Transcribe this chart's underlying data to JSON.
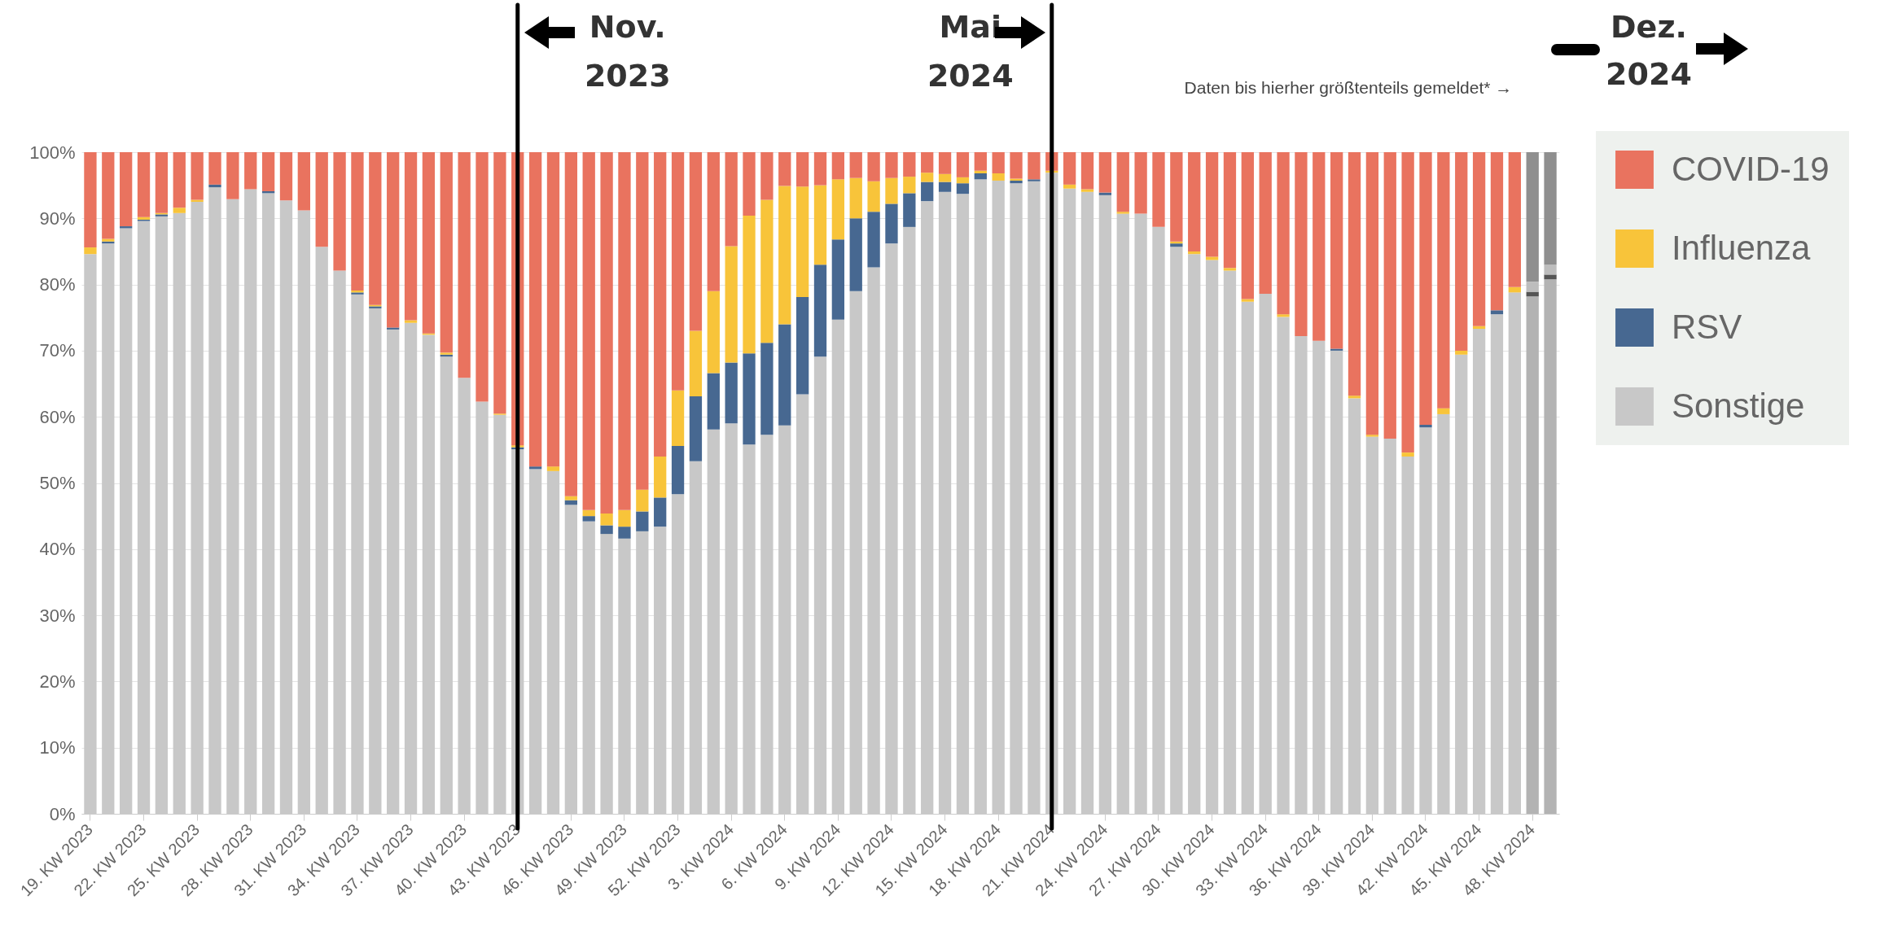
{
  "chart_data": {
    "type": "bar",
    "stacked": true,
    "categories": [
      "19. KW 2023",
      null,
      null,
      "22. KW 2023",
      null,
      null,
      "25. KW 2023",
      null,
      null,
      "28. KW 2023",
      null,
      null,
      "31. KW 2023",
      null,
      null,
      "34. KW 2023",
      null,
      null,
      "37. KW 2023",
      null,
      null,
      "40. KW 2023",
      null,
      null,
      "43. KW 2023",
      null,
      null,
      "46. KW 2023",
      null,
      null,
      "49. KW 2023",
      null,
      null,
      "52. KW 2023",
      null,
      null,
      "3. KW 2024",
      null,
      null,
      "6. KW 2024",
      null,
      null,
      "9. KW 2024",
      null,
      null,
      "12. KW 2024",
      null,
      null,
      "15. KW 2024",
      null,
      null,
      "18. KW 2024",
      null,
      null,
      "21. KW 2024",
      null,
      null,
      "24. KW 2024",
      null,
      null,
      "27. KW 2024",
      null,
      null,
      "30. KW 2024",
      null,
      null,
      "33. KW 2024",
      null,
      null,
      "36. KW 2024",
      null,
      null,
      "39. KW 2024",
      null,
      null,
      "42. KW 2024",
      null,
      null,
      "45. KW 2024",
      null,
      null,
      "48. KW 2024",
      null
    ],
    "series": [
      {
        "name": "Sonstige",
        "color": "#c8c8c8",
        "colors": [
          "#c8c8c8",
          "#c8c8c8",
          "#c8c8c8",
          "#c8c8c8",
          "#c8c8c8",
          "#c8c8c8",
          "#c8c8c8",
          "#c8c8c8",
          "#c8c8c8",
          "#c8c8c8",
          "#c8c8c8",
          "#c8c8c8",
          "#c8c8c8",
          "#c8c8c8",
          "#c8c8c8",
          "#c8c8c8",
          "#c8c8c8",
          "#c8c8c8",
          "#c8c8c8",
          "#c8c8c8",
          "#c8c8c8",
          "#c8c8c8",
          "#c8c8c8",
          "#c8c8c8",
          "#c8c8c8",
          "#c8c8c8",
          "#c8c8c8",
          "#c8c8c8",
          "#c8c8c8",
          "#c8c8c8",
          "#c8c8c8",
          "#c8c8c8",
          "#c8c8c8",
          "#c8c8c8",
          "#c8c8c8",
          "#c8c8c8",
          "#c8c8c8",
          "#c8c8c8",
          "#c8c8c8",
          "#c8c8c8",
          "#c8c8c8",
          "#c8c8c8",
          "#c8c8c8",
          "#c8c8c8",
          "#c8c8c8",
          "#c8c8c8",
          "#c8c8c8",
          "#c8c8c8",
          "#c8c8c8",
          "#c8c8c8",
          "#c8c8c8",
          "#c8c8c8",
          "#c8c8c8",
          "#c8c8c8",
          "#c8c8c8",
          "#c8c8c8",
          "#c8c8c8",
          "#c8c8c8",
          "#c8c8c8",
          "#c8c8c8",
          "#c8c8c8",
          "#c8c8c8",
          "#c8c8c8",
          "#c8c8c8",
          "#c8c8c8",
          "#c8c8c8",
          "#c8c8c8",
          "#c8c8c8",
          "#c8c8c8",
          "#c8c8c8",
          "#c8c8c8",
          "#c8c8c8",
          "#c8c8c8",
          "#c8c8c8",
          "#c8c8c8",
          "#c8c8c8",
          "#c8c8c8",
          "#c8c8c8",
          "#c8c8c8",
          "#c8c8c8",
          "#c8c8c8",
          "#b3b3b3",
          "#b3b3b3"
        ],
        "values": [
          84.6,
          86.2,
          88.5,
          89.6,
          90.3,
          90.8,
          92.5,
          94.7,
          92.9,
          94.4,
          93.8,
          92.7,
          91.2,
          85.7,
          82.1,
          78.5,
          76.4,
          73.2,
          74.2,
          72.4,
          69.1,
          65.9,
          62.3,
          60.3,
          55.1,
          52.1,
          51.8,
          46.7,
          44.2,
          42.3,
          41.6,
          42.7,
          43.4,
          48.3,
          53.3,
          58.1,
          59.0,
          55.8,
          57.3,
          58.7,
          63.4,
          69.1,
          74.7,
          79.0,
          82.6,
          86.2,
          88.7,
          92.6,
          94.0,
          93.7,
          95.9,
          95.7,
          95.3,
          95.6,
          96.9,
          94.5,
          94.0,
          93.5,
          90.7,
          90.7,
          88.7,
          85.7,
          84.6,
          83.7,
          82.1,
          77.4,
          78.6,
          75.1,
          72.2,
          71.5,
          70.0,
          62.8,
          57.0,
          56.7,
          54.0,
          58.4,
          60.4,
          69.4,
          73.3,
          75.5,
          78.8,
          78.2,
          80.8
        ]
      },
      {
        "name": "RSV",
        "color": "#476891",
        "colors": [
          "#476891",
          "#476891",
          "#476891",
          "#476891",
          "#476891",
          "#476891",
          "#476891",
          "#476891",
          "#476891",
          "#476891",
          "#476891",
          "#476891",
          "#476891",
          "#476891",
          "#476891",
          "#476891",
          "#476891",
          "#476891",
          "#476891",
          "#476891",
          "#476891",
          "#476891",
          "#476891",
          "#476891",
          "#476891",
          "#476891",
          "#476891",
          "#476891",
          "#476891",
          "#476891",
          "#476891",
          "#476891",
          "#476891",
          "#476891",
          "#476891",
          "#476891",
          "#476891",
          "#476891",
          "#476891",
          "#476891",
          "#476891",
          "#476891",
          "#476891",
          "#476891",
          "#476891",
          "#476891",
          "#476891",
          "#476891",
          "#476891",
          "#476891",
          "#476891",
          "#476891",
          "#476891",
          "#476891",
          "#476891",
          "#476891",
          "#476891",
          "#476891",
          "#476891",
          "#476891",
          "#476891",
          "#476891",
          "#476891",
          "#476891",
          "#476891",
          "#476891",
          "#476891",
          "#476891",
          "#476891",
          "#476891",
          "#476891",
          "#476891",
          "#476891",
          "#476891",
          "#476891",
          "#476891",
          "#476891",
          "#476891",
          "#476891",
          "#476891",
          "#476891",
          "#555555",
          "#555555"
        ],
        "values": [
          0,
          0.3,
          0.3,
          0.2,
          0.3,
          0,
          0,
          0.4,
          0,
          0,
          0.3,
          0,
          0,
          0,
          0,
          0.3,
          0.3,
          0.3,
          0,
          0,
          0.3,
          0,
          0,
          0,
          0.3,
          0.4,
          0,
          0.7,
          0.8,
          1.3,
          1.8,
          3.0,
          4.4,
          7.3,
          9.8,
          8.5,
          9.2,
          13.8,
          13.9,
          15.3,
          14.7,
          13.9,
          12.1,
          11.0,
          8.4,
          6.0,
          5.1,
          2.9,
          1.5,
          1.6,
          0.9,
          0,
          0.4,
          0.3,
          0,
          0,
          0,
          0.4,
          0,
          0,
          0,
          0.5,
          0,
          0,
          0,
          0,
          0,
          0,
          0,
          0,
          0.3,
          0,
          0,
          0,
          0,
          0.4,
          0,
          0,
          0,
          0.6,
          0,
          0.7,
          0.7
        ]
      },
      {
        "name": "Influenza",
        "color": "#f8c43a",
        "colors": [
          "#f8c43a",
          "#f8c43a",
          "#f8c43a",
          "#f8c43a",
          "#f8c43a",
          "#f8c43a",
          "#f8c43a",
          "#f8c43a",
          "#f8c43a",
          "#f8c43a",
          "#f8c43a",
          "#f8c43a",
          "#f8c43a",
          "#f8c43a",
          "#f8c43a",
          "#f8c43a",
          "#f8c43a",
          "#f8c43a",
          "#f8c43a",
          "#f8c43a",
          "#f8c43a",
          "#f8c43a",
          "#f8c43a",
          "#f8c43a",
          "#f8c43a",
          "#f8c43a",
          "#f8c43a",
          "#f8c43a",
          "#f8c43a",
          "#f8c43a",
          "#f8c43a",
          "#f8c43a",
          "#f8c43a",
          "#f8c43a",
          "#f8c43a",
          "#f8c43a",
          "#f8c43a",
          "#f8c43a",
          "#f8c43a",
          "#f8c43a",
          "#f8c43a",
          "#f8c43a",
          "#f8c43a",
          "#f8c43a",
          "#f8c43a",
          "#f8c43a",
          "#f8c43a",
          "#f8c43a",
          "#f8c43a",
          "#f8c43a",
          "#f8c43a",
          "#f8c43a",
          "#f8c43a",
          "#f8c43a",
          "#f8c43a",
          "#f8c43a",
          "#f8c43a",
          "#f8c43a",
          "#f8c43a",
          "#f8c43a",
          "#f8c43a",
          "#f8c43a",
          "#f8c43a",
          "#f8c43a",
          "#f8c43a",
          "#f8c43a",
          "#f8c43a",
          "#f8c43a",
          "#f8c43a",
          "#f8c43a",
          "#f8c43a",
          "#f8c43a",
          "#f8c43a",
          "#f8c43a",
          "#f8c43a",
          "#f8c43a",
          "#f8c43a",
          "#f8c43a",
          "#f8c43a",
          "#f8c43a",
          "#f8c43a",
          "#bdbdbd",
          "#bdbdbd"
        ],
        "values": [
          1.0,
          0.4,
          0,
          0.4,
          0.2,
          0.8,
          0.3,
          0,
          0,
          0,
          0,
          0,
          0,
          0,
          0,
          0.3,
          0.2,
          0,
          0.4,
          0.2,
          0.3,
          0,
          0,
          0.2,
          0.3,
          0,
          0.7,
          0.6,
          0.9,
          1.8,
          2.5,
          3.3,
          6.2,
          8.4,
          9.9,
          12.4,
          17.6,
          20.8,
          21.6,
          20.9,
          16.7,
          12.0,
          9.1,
          6.1,
          4.6,
          3.9,
          2.5,
          1.4,
          1.2,
          0.9,
          0.4,
          1.1,
          0.3,
          0,
          0.3,
          0.6,
          0.4,
          0,
          0.3,
          0,
          0,
          0.3,
          0.4,
          0.5,
          0.4,
          0.4,
          0,
          0.4,
          0,
          0,
          0,
          0.4,
          0.3,
          0,
          0.6,
          0,
          0.9,
          0.6,
          0.4,
          0,
          0.8,
          1.5,
          1.5
        ]
      },
      {
        "name": "COVID-19",
        "color": "#e9735f",
        "colors": [
          "#e9735f",
          "#e9735f",
          "#e9735f",
          "#e9735f",
          "#e9735f",
          "#e9735f",
          "#e9735f",
          "#e9735f",
          "#e9735f",
          "#e9735f",
          "#e9735f",
          "#e9735f",
          "#e9735f",
          "#e9735f",
          "#e9735f",
          "#e9735f",
          "#e9735f",
          "#e9735f",
          "#e9735f",
          "#e9735f",
          "#e9735f",
          "#e9735f",
          "#e9735f",
          "#e9735f",
          "#e9735f",
          "#e9735f",
          "#e9735f",
          "#e9735f",
          "#e9735f",
          "#e9735f",
          "#e9735f",
          "#e9735f",
          "#e9735f",
          "#e9735f",
          "#e9735f",
          "#e9735f",
          "#e9735f",
          "#e9735f",
          "#e9735f",
          "#e9735f",
          "#e9735f",
          "#e9735f",
          "#e9735f",
          "#e9735f",
          "#e9735f",
          "#e9735f",
          "#e9735f",
          "#e9735f",
          "#e9735f",
          "#e9735f",
          "#e9735f",
          "#e9735f",
          "#e9735f",
          "#e9735f",
          "#e9735f",
          "#e9735f",
          "#e9735f",
          "#e9735f",
          "#e9735f",
          "#e9735f",
          "#e9735f",
          "#e9735f",
          "#e9735f",
          "#e9735f",
          "#e9735f",
          "#e9735f",
          "#e9735f",
          "#e9735f",
          "#e9735f",
          "#e9735f",
          "#e9735f",
          "#e9735f",
          "#e9735f",
          "#e9735f",
          "#e9735f",
          "#e9735f",
          "#e9735f",
          "#e9735f",
          "#e9735f",
          "#e9735f",
          "#e9735f",
          "#8f8f8f",
          "#8f8f8f"
        ],
        "values": [
          14.4,
          13.1,
          11.2,
          9.8,
          9.2,
          8.4,
          7.2,
          4.9,
          7.1,
          5.6,
          5.9,
          7.3,
          8.8,
          14.3,
          17.9,
          20.9,
          23.1,
          26.5,
          25.4,
          27.4,
          30.3,
          34.1,
          37.7,
          39.5,
          44.3,
          47.5,
          47.5,
          52.0,
          54.1,
          54.6,
          54.1,
          51.0,
          46.0,
          36.0,
          27.0,
          21.0,
          14.2,
          9.6,
          7.2,
          5.1,
          5.2,
          5.0,
          4.1,
          3.9,
          4.4,
          3.9,
          3.7,
          3.1,
          3.3,
          3.8,
          2.8,
          3.2,
          4.0,
          4.1,
          2.8,
          4.9,
          5.6,
          6.1,
          9.0,
          9.3,
          11.3,
          13.5,
          15.0,
          15.8,
          17.5,
          22.2,
          21.4,
          24.5,
          27.8,
          28.5,
          29.7,
          36.8,
          42.7,
          43.3,
          45.4,
          41.2,
          38.7,
          30.0,
          26.3,
          23.9,
          20.4,
          19.6,
          17.0
        ]
      }
    ],
    "ylim": [
      0,
      100
    ],
    "yticks": [
      {
        "value": 0,
        "label": "0%"
      },
      {
        "value": 10,
        "label": "10%"
      },
      {
        "value": 20,
        "label": "20%"
      },
      {
        "value": 30,
        "label": "30%"
      },
      {
        "value": 40,
        "label": "40%"
      },
      {
        "value": 50,
        "label": "50%"
      },
      {
        "value": 60,
        "label": "60%"
      },
      {
        "value": 70,
        "label": "70%"
      },
      {
        "value": 80,
        "label": "80%"
      },
      {
        "value": 90,
        "label": "90%"
      },
      {
        "value": 100,
        "label": "100%"
      }
    ],
    "grid": "y",
    "legend": "right",
    "ref_lines": [
      {
        "axis": "x",
        "value": "43. KW 2023",
        "label": "Nov. 2023",
        "color": "#000000"
      },
      {
        "axis": "x",
        "value": "21. KW 2024",
        "label": "Mai 2024",
        "color": "#000000"
      }
    ],
    "annotations": [
      "Daten bis hierher größtenteils gemeldet* →",
      "Dez. 2024"
    ]
  }
}
